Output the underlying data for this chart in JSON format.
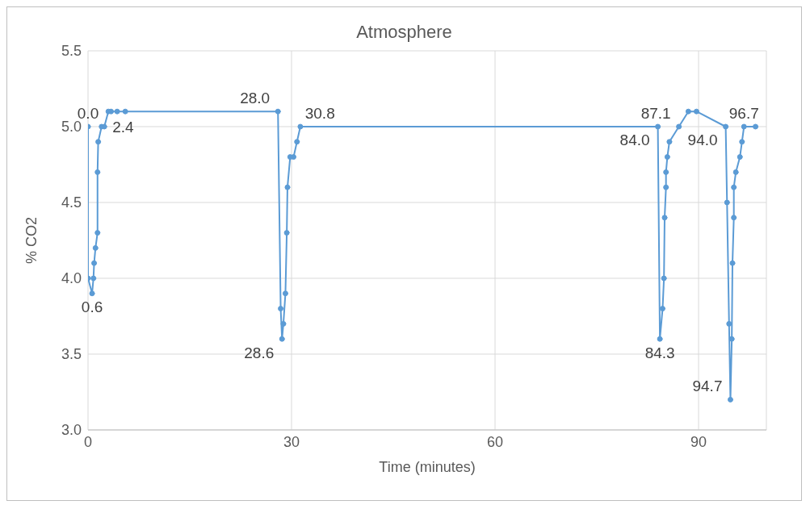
{
  "chart_data": {
    "type": "line",
    "title": "Atmosphere",
    "xlabel": "Time (minutes)",
    "ylabel": "% CO2",
    "xlim": [
      0,
      100
    ],
    "xticks": [
      0,
      30,
      60,
      90
    ],
    "ylim": [
      3.0,
      5.5
    ],
    "yticks": [
      {
        "value": 3.0,
        "label": "3.0"
      },
      {
        "value": 3.5,
        "label": "3.5"
      },
      {
        "value": 4.0,
        "label": "4.0"
      },
      {
        "value": 4.5,
        "label": "4.5"
      },
      {
        "value": 5.0,
        "label": "5.0"
      },
      {
        "value": 5.5,
        "label": "5.5"
      }
    ],
    "grid": true,
    "legend": false,
    "marker": "circle",
    "line_style": "solid",
    "series": [
      {
        "color": "#5b9bd5",
        "x": [
          0,
          0.0,
          0.6,
          0.8,
          0.9,
          1.1,
          1.4,
          1.4,
          1.5,
          2.0,
          2.4,
          3.0,
          3.4,
          4.3,
          5.5,
          28.0,
          28.4,
          28.6,
          28.8,
          29.1,
          29.3,
          29.4,
          29.8,
          30.3,
          30.8,
          31.3,
          84.0,
          84.3,
          84.7,
          84.9,
          85.0,
          85.2,
          85.2,
          85.4,
          85.7,
          87.1,
          88.5,
          89.7,
          94.0,
          94.2,
          94.5,
          94.7,
          94.9,
          95.0,
          95.2,
          95.2,
          95.5,
          96.1,
          96.4,
          96.7,
          98.4
        ],
        "values": [
          5.0,
          4.0,
          3.9,
          4.0,
          4.1,
          4.2,
          4.3,
          4.7,
          4.9,
          5.0,
          5.0,
          5.1,
          5.1,
          5.1,
          5.1,
          5.1,
          3.8,
          3.6,
          3.7,
          3.9,
          4.3,
          4.6,
          4.8,
          4.8,
          4.9,
          5.0,
          5.0,
          3.6,
          3.8,
          4.0,
          4.4,
          4.6,
          4.7,
          4.8,
          4.9,
          5.0,
          5.1,
          5.1,
          5.0,
          4.5,
          3.7,
          3.2,
          3.6,
          4.1,
          4.4,
          4.6,
          4.7,
          4.8,
          4.9,
          5.0,
          5.0
        ]
      }
    ],
    "annotations": [
      {
        "text": "0.0",
        "x": 0,
        "y": 5.0
      },
      {
        "text": "0.6",
        "x": 0.6,
        "y": 3.9
      },
      {
        "text": "2.4",
        "x": 2.4,
        "y": 5.0
      },
      {
        "text": "28.0",
        "x": 28.0,
        "y": 5.1
      },
      {
        "text": "28.6",
        "x": 28.6,
        "y": 3.6
      },
      {
        "text": "30.8",
        "x": 30.8,
        "y": 5.0
      },
      {
        "text": "84.0",
        "x": 84.0,
        "y": 5.0
      },
      {
        "text": "84.3",
        "x": 84.3,
        "y": 3.6
      },
      {
        "text": "87.1",
        "x": 87.1,
        "y": 5.0
      },
      {
        "text": "94.0",
        "x": 94.0,
        "y": 5.0
      },
      {
        "text": "94.7",
        "x": 94.7,
        "y": 3.2
      },
      {
        "text": "96.7",
        "x": 96.7,
        "y": 5.0
      }
    ]
  }
}
